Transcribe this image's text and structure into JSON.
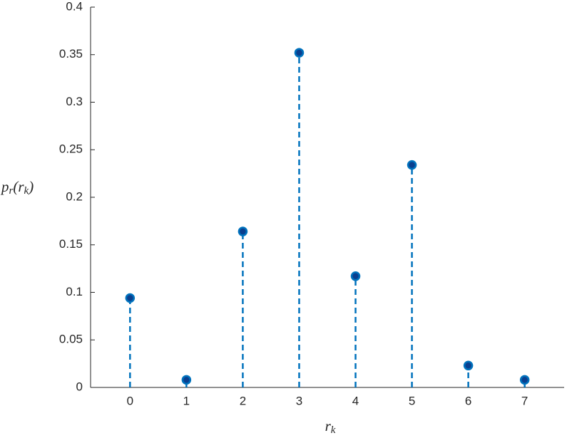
{
  "chart_data": {
    "type": "stem",
    "x": [
      0,
      1,
      2,
      3,
      4,
      5,
      6,
      7
    ],
    "values": [
      0.094,
      0.008,
      0.164,
      0.352,
      0.117,
      0.234,
      0.023,
      0.008
    ],
    "color": "#0072bd",
    "marker_face": "#0a3f8f",
    "xlim": [
      -0.7,
      7.7
    ],
    "xticks": [
      0,
      1,
      2,
      3,
      4,
      5,
      6,
      7
    ],
    "ylim": [
      0,
      0.4
    ],
    "yticks": [
      0,
      0.05,
      0.1,
      0.15,
      0.2,
      0.25,
      0.3,
      0.35,
      0.4
    ],
    "xlabel": {
      "main": "r",
      "sub": "k"
    },
    "ylabel": {
      "main": [
        "p",
        "(r",
        ")"
      ],
      "sub": [
        "r",
        "k"
      ]
    }
  }
}
